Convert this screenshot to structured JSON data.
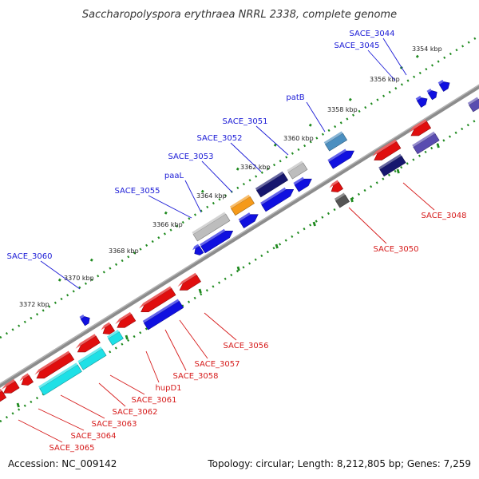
{
  "title": "Saccharopolyspora erythraea NRRL 2338, complete genome",
  "footer": {
    "accession": "Accession: NC_009142",
    "summary": "Topology: circular; Length: 8,212,805 bp; Genes: 7,259"
  },
  "colors": {
    "forward_label": "#1b1bd6",
    "reverse_label": "#d61b1b",
    "backbone": "#8c8c8c",
    "tick": "#1f8a1f",
    "forward_gene": "#1010e0",
    "reverse_gene": "#e00e0e",
    "cyan_gene": "#1ee0e6",
    "grey_gene": "#bdbdbd",
    "orange_gene": "#f59a1a",
    "navy_gene": "#16166e",
    "slate_gene": "#4b8fc0",
    "purple_gene": "#5a4cb0"
  },
  "kbp_labels": [
    "3354 kbp",
    "3356 kbp",
    "3358 kbp",
    "3360 kbp",
    "3362 kbp",
    "3364 kbp",
    "3366 kbp",
    "3368 kbp",
    "3370 kbp",
    "3372 kbp"
  ],
  "forward_labels": [
    "SACE_3044",
    "SACE_3045",
    "patB",
    "SACE_3051",
    "SACE_3052",
    "SACE_3053",
    "paaL",
    "SACE_3055",
    "SACE_3060"
  ],
  "reverse_labels": [
    "SACE_3048",
    "SACE_3050",
    "SACE_3056",
    "SACE_3057",
    "SACE_3058",
    "hupD1",
    "SACE_3061",
    "SACE_3062",
    "SACE_3063",
    "SACE_3064",
    "SACE_3065"
  ]
}
